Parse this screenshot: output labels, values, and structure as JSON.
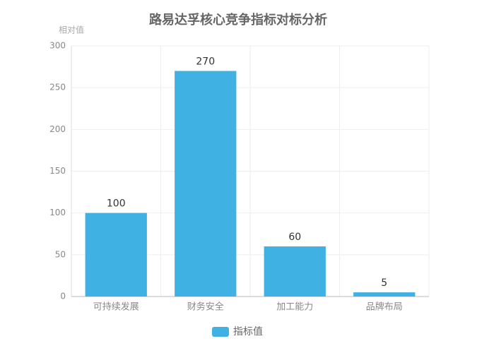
{
  "chart_data": {
    "type": "bar",
    "title": "路易达孚核心竞争指标对标分析",
    "y_label": "相对值",
    "categories": [
      "可持续发展",
      "财务安全",
      "加工能力",
      "品牌布局"
    ],
    "series": [
      {
        "name": "指标值",
        "color": "#3fb1e3",
        "values": [
          100,
          270,
          60,
          5
        ]
      }
    ],
    "ylim": [
      0,
      300
    ],
    "yticks": [
      0,
      50,
      100,
      150,
      200,
      250,
      300
    ],
    "grid": true,
    "legend": "bottom"
  }
}
